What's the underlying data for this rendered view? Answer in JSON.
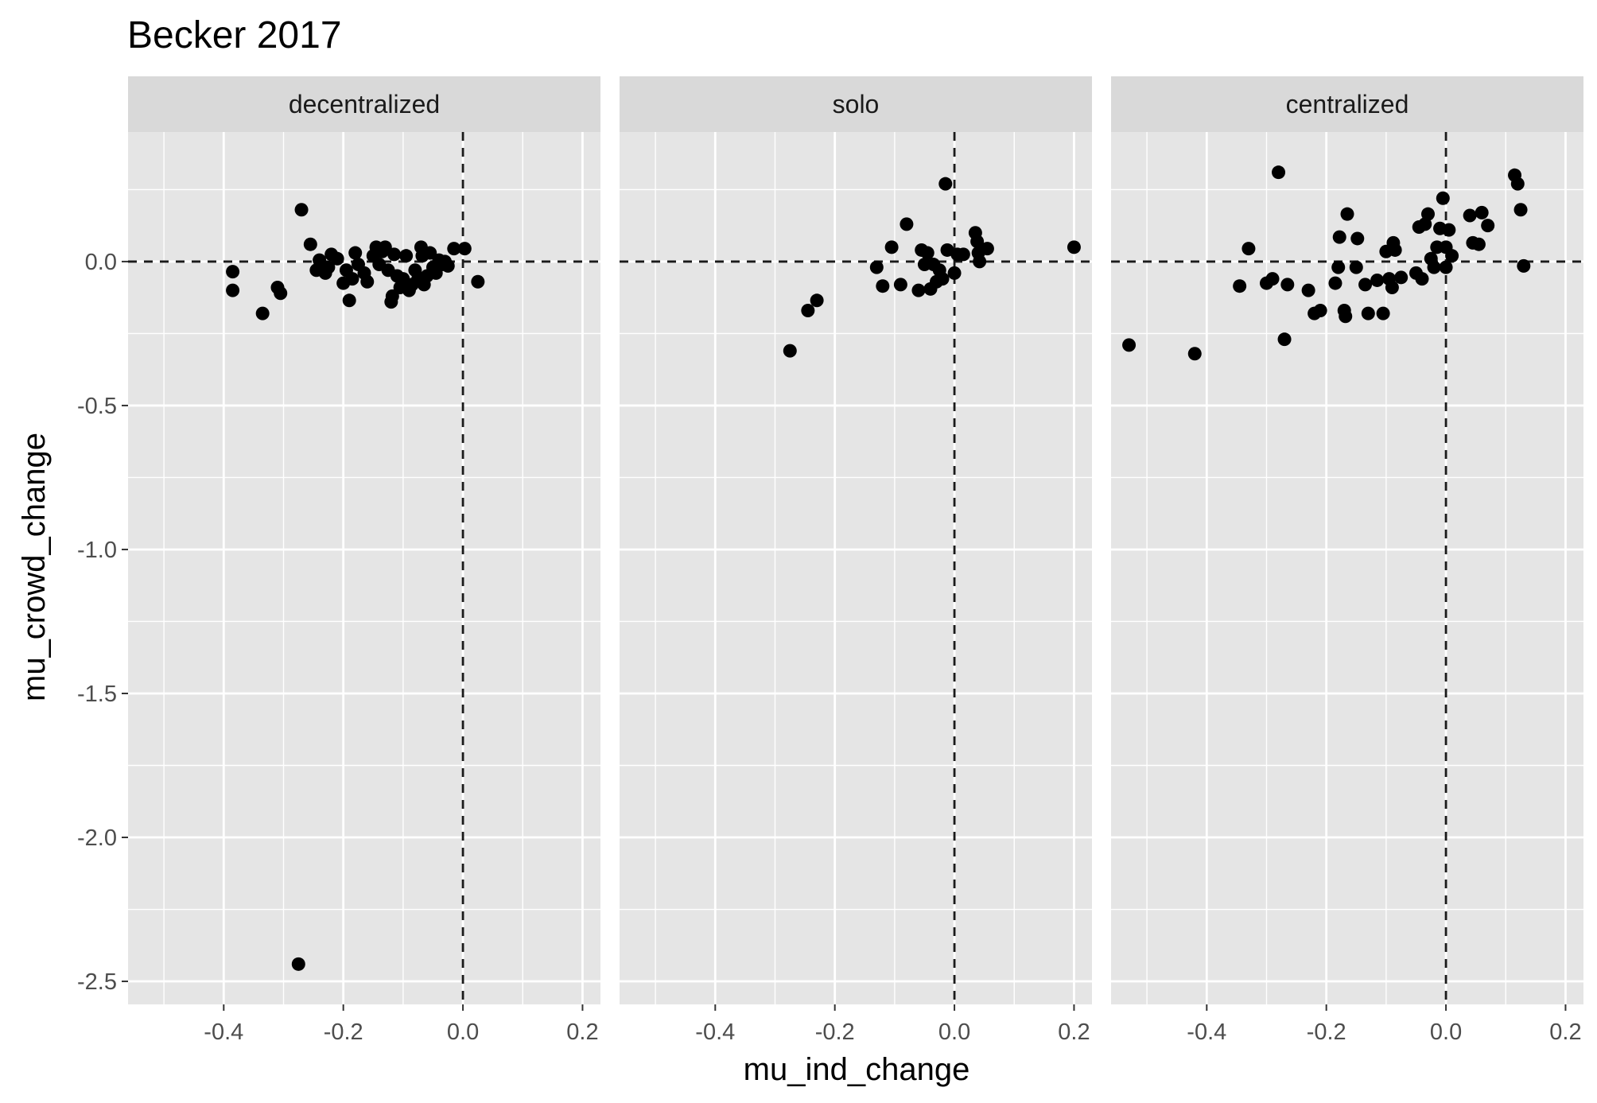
{
  "chart_data": {
    "type": "scatter",
    "title": "Becker 2017",
    "xlabel": "mu_ind_change",
    "ylabel": "mu_crowd_change",
    "xlim": [
      -0.56,
      0.23
    ],
    "ylim": [
      -2.58,
      0.45
    ],
    "x_ticks": [
      -0.4,
      -0.2,
      0.0,
      0.2
    ],
    "x_tick_labels": [
      "-0.4",
      "-0.2",
      "0.0",
      "0.2"
    ],
    "y_ticks": [
      0.0,
      -0.5,
      -1.0,
      -1.5,
      -2.0,
      -2.5
    ],
    "y_tick_labels": [
      "0.0",
      "-0.5",
      "-1.0",
      "-1.5",
      "-2.0",
      "-2.5"
    ],
    "reference_lines": {
      "x": 0,
      "y": 0,
      "style": "dashed"
    },
    "grid": true,
    "legend": "none",
    "point_color": "#000000",
    "panel_background": "#e5e5e5",
    "strip_background": "#d9d9d9",
    "facets": [
      {
        "label": "decentralized",
        "points": [
          [
            -0.385,
            -0.035
          ],
          [
            -0.385,
            -0.1
          ],
          [
            -0.335,
            -0.18
          ],
          [
            -0.31,
            -0.09
          ],
          [
            -0.305,
            -0.11
          ],
          [
            -0.275,
            -2.44
          ],
          [
            -0.27,
            0.18
          ],
          [
            -0.255,
            0.06
          ],
          [
            -0.245,
            -0.03
          ],
          [
            -0.24,
            0.005
          ],
          [
            -0.23,
            -0.04
          ],
          [
            -0.225,
            -0.02
          ],
          [
            -0.22,
            0.025
          ],
          [
            -0.21,
            0.01
          ],
          [
            -0.2,
            -0.075
          ],
          [
            -0.195,
            -0.03
          ],
          [
            -0.19,
            -0.135
          ],
          [
            -0.185,
            -0.06
          ],
          [
            -0.18,
            0.03
          ],
          [
            -0.175,
            -0.01
          ],
          [
            -0.165,
            -0.04
          ],
          [
            -0.16,
            -0.07
          ],
          [
            -0.15,
            0.02
          ],
          [
            -0.145,
            0.05
          ],
          [
            -0.14,
            -0.01
          ],
          [
            -0.135,
            0.035
          ],
          [
            -0.13,
            0.05
          ],
          [
            -0.125,
            -0.03
          ],
          [
            -0.12,
            -0.14
          ],
          [
            -0.118,
            -0.12
          ],
          [
            -0.115,
            0.025
          ],
          [
            -0.11,
            -0.05
          ],
          [
            -0.105,
            -0.09
          ],
          [
            -0.1,
            -0.06
          ],
          [
            -0.095,
            0.02
          ],
          [
            -0.09,
            -0.1
          ],
          [
            -0.085,
            -0.08
          ],
          [
            -0.08,
            -0.03
          ],
          [
            -0.075,
            -0.06
          ],
          [
            -0.07,
            0.05
          ],
          [
            -0.068,
            0.02
          ],
          [
            -0.065,
            -0.08
          ],
          [
            -0.06,
            -0.05
          ],
          [
            -0.055,
            0.03
          ],
          [
            -0.05,
            -0.02
          ],
          [
            -0.045,
            -0.04
          ],
          [
            -0.04,
            0.005
          ],
          [
            -0.035,
            -0.01
          ],
          [
            -0.03,
            0.0
          ],
          [
            -0.025,
            -0.015
          ],
          [
            -0.015,
            0.045
          ],
          [
            0.003,
            0.045
          ],
          [
            0.025,
            -0.07
          ]
        ]
      },
      {
        "label": "solo",
        "points": [
          [
            -0.275,
            -0.31
          ],
          [
            -0.245,
            -0.17
          ],
          [
            -0.23,
            -0.135
          ],
          [
            -0.13,
            -0.02
          ],
          [
            -0.12,
            -0.085
          ],
          [
            -0.105,
            0.05
          ],
          [
            -0.09,
            -0.08
          ],
          [
            -0.08,
            0.13
          ],
          [
            -0.06,
            -0.1
          ],
          [
            -0.055,
            0.04
          ],
          [
            -0.05,
            -0.01
          ],
          [
            -0.045,
            0.03
          ],
          [
            -0.04,
            -0.095
          ],
          [
            -0.035,
            -0.01
          ],
          [
            -0.03,
            -0.07
          ],
          [
            -0.025,
            -0.03
          ],
          [
            -0.02,
            -0.06
          ],
          [
            -0.015,
            0.27
          ],
          [
            -0.012,
            0.04
          ],
          [
            0.0,
            -0.04
          ],
          [
            0.005,
            0.025
          ],
          [
            0.015,
            0.025
          ],
          [
            0.035,
            0.1
          ],
          [
            0.038,
            0.07
          ],
          [
            0.04,
            0.03
          ],
          [
            0.042,
            0.0
          ],
          [
            0.055,
            0.045
          ],
          [
            0.2,
            0.05
          ]
        ]
      },
      {
        "label": "centralized",
        "points": [
          [
            -0.53,
            -0.29
          ],
          [
            -0.42,
            -0.32
          ],
          [
            -0.345,
            -0.085
          ],
          [
            -0.33,
            0.045
          ],
          [
            -0.3,
            -0.075
          ],
          [
            -0.29,
            -0.06
          ],
          [
            -0.28,
            0.31
          ],
          [
            -0.27,
            -0.27
          ],
          [
            -0.265,
            -0.08
          ],
          [
            -0.23,
            -0.1
          ],
          [
            -0.22,
            -0.18
          ],
          [
            -0.21,
            -0.17
          ],
          [
            -0.185,
            -0.075
          ],
          [
            -0.18,
            -0.02
          ],
          [
            -0.178,
            0.085
          ],
          [
            -0.17,
            -0.17
          ],
          [
            -0.168,
            -0.19
          ],
          [
            -0.165,
            0.165
          ],
          [
            -0.15,
            -0.02
          ],
          [
            -0.148,
            0.08
          ],
          [
            -0.135,
            -0.08
          ],
          [
            -0.13,
            -0.18
          ],
          [
            -0.115,
            -0.065
          ],
          [
            -0.105,
            -0.18
          ],
          [
            -0.1,
            0.035
          ],
          [
            -0.095,
            -0.06
          ],
          [
            -0.09,
            -0.09
          ],
          [
            -0.088,
            0.065
          ],
          [
            -0.085,
            0.04
          ],
          [
            -0.075,
            -0.055
          ],
          [
            -0.05,
            -0.04
          ],
          [
            -0.045,
            0.12
          ],
          [
            -0.04,
            -0.06
          ],
          [
            -0.035,
            0.13
          ],
          [
            -0.03,
            0.165
          ],
          [
            -0.025,
            0.01
          ],
          [
            -0.02,
            -0.02
          ],
          [
            -0.015,
            0.05
          ],
          [
            -0.01,
            0.115
          ],
          [
            -0.005,
            0.22
          ],
          [
            0.0,
            0.05
          ],
          [
            0.0,
            -0.02
          ],
          [
            0.005,
            0.11
          ],
          [
            0.01,
            0.02
          ],
          [
            0.04,
            0.16
          ],
          [
            0.045,
            0.065
          ],
          [
            0.055,
            0.06
          ],
          [
            0.06,
            0.17
          ],
          [
            0.07,
            0.125
          ],
          [
            0.115,
            0.3
          ],
          [
            0.12,
            0.27
          ],
          [
            0.125,
            0.18
          ],
          [
            0.13,
            -0.015
          ]
        ]
      }
    ]
  }
}
